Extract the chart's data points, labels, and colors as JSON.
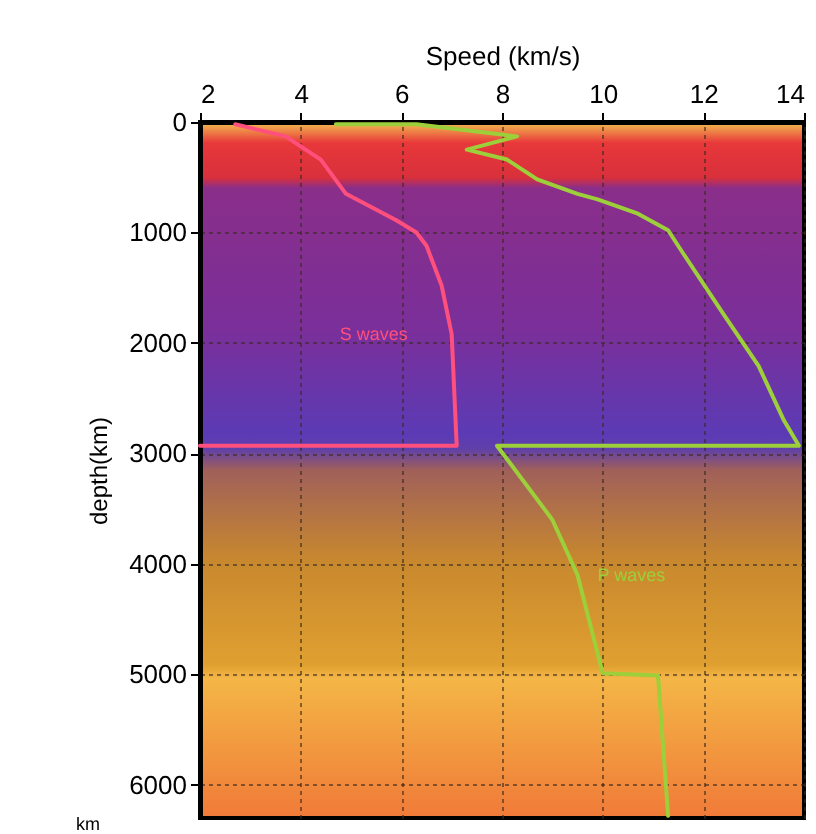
{
  "chart_data": {
    "type": "line",
    "xlabel": "Speed (km/s)",
    "ylabel": "depth(km)",
    "xlim": [
      2,
      14
    ],
    "xticks": [
      2,
      4,
      6,
      8,
      10,
      12,
      14
    ],
    "ylim": [
      6300,
      0
    ],
    "yticks": [
      0,
      1000,
      2000,
      3000,
      4000,
      5000,
      6000
    ],
    "grid": true,
    "marker": "none",
    "line_style": "solid",
    "annotations": [
      "km"
    ],
    "series": [
      {
        "name": "S waves",
        "color": "#ff4f7d",
        "x": [
          2.7,
          3.7,
          4.4,
          4.9,
          5.9,
          6.3,
          6.5,
          6.8,
          7.0,
          7.1,
          2
        ],
        "values": [
          20,
          130,
          340,
          650,
          890,
          1000,
          1120,
          1480,
          1920,
          2930,
          2930
        ]
      },
      {
        "name": "P waves",
        "color": "#9ccf3a",
        "x": [
          4.7,
          6.3,
          8.3,
          7.3,
          8.1,
          8.7,
          9.5,
          9.9,
          10.7,
          11.3,
          11.6,
          12.4,
          13.1,
          13.6,
          13.9,
          7.9,
          9.0,
          9.5,
          10.0,
          11.1,
          11.3
        ],
        "values": [
          20,
          20,
          130,
          250,
          340,
          520,
          650,
          700,
          830,
          980,
          1190,
          1740,
          2210,
          2700,
          2930,
          2930,
          3600,
          4100,
          4990,
          5010,
          6280
        ]
      }
    ]
  }
}
